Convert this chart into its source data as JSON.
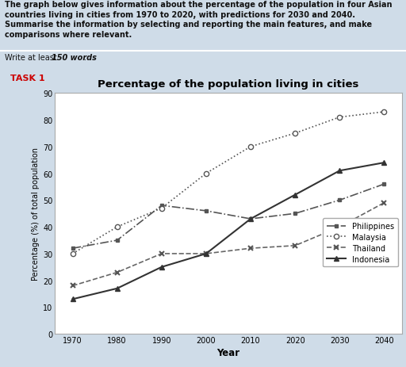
{
  "title": "Percentage of the population living in cities",
  "xlabel": "Year",
  "ylabel": "Percentage (%) of total population",
  "years": [
    1970,
    1980,
    1990,
    2000,
    2010,
    2020,
    2030,
    2040
  ],
  "philippines": [
    32,
    35,
    48,
    46,
    43,
    45,
    50,
    56
  ],
  "malaysia": [
    30,
    40,
    47,
    60,
    70,
    75,
    81,
    83
  ],
  "thailand": [
    18,
    23,
    30,
    30,
    32,
    33,
    40,
    49
  ],
  "indonesia": [
    13,
    17,
    25,
    30,
    43,
    52,
    61,
    64
  ],
  "ylim": [
    0,
    90
  ],
  "yticks": [
    0,
    10,
    20,
    30,
    40,
    50,
    60,
    70,
    80,
    90
  ],
  "task_label": "TASK 1",
  "background_color": "#cfdce8",
  "plot_bg_color": "#ffffff",
  "header_bg": "#c2d4e0"
}
